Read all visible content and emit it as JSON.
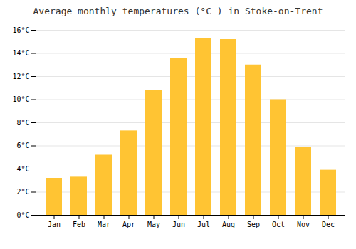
{
  "chart_data": {
    "type": "bar",
    "title": "Average monthly temperatures (°C ) in Stoke-on-Trent",
    "categories": [
      "Jan",
      "Feb",
      "Mar",
      "Apr",
      "May",
      "Jun",
      "Jul",
      "Aug",
      "Sep",
      "Oct",
      "Nov",
      "Dec"
    ],
    "values": [
      3.2,
      3.3,
      5.2,
      7.3,
      10.8,
      13.6,
      15.3,
      15.2,
      13.0,
      10.0,
      5.9,
      3.9
    ],
    "color": "#FFC433",
    "ylim": [
      0,
      16
    ],
    "yticks": [
      {
        "value": 0,
        "label": "0°C"
      },
      {
        "value": 2,
        "label": "2°C"
      },
      {
        "value": 4,
        "label": "4°C"
      },
      {
        "value": 6,
        "label": "6°C"
      },
      {
        "value": 8,
        "label": "8°C"
      },
      {
        "value": 10,
        "label": "10°C"
      },
      {
        "value": 12,
        "label": "12°C"
      },
      {
        "value": 14,
        "label": "14°C"
      },
      {
        "value": 16,
        "label": "16°C"
      }
    ],
    "grid": true
  }
}
